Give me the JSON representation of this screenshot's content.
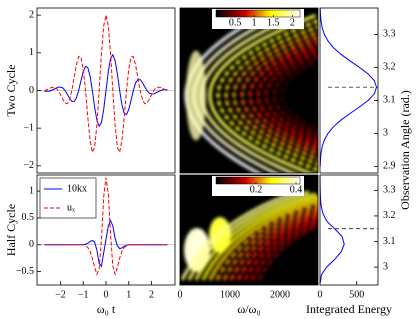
{
  "chart_data": [
    {
      "type": "line",
      "ylabel": "Two Cycle",
      "xlim": [
        -3.03,
        3.03
      ],
      "ylim": [
        -2.19,
        2.19
      ],
      "yticks": [
        {
          "value": -2,
          "label": "−2"
        },
        {
          "value": -1,
          "label": "−1"
        },
        0,
        1,
        2
      ],
      "x": [
        -2.7,
        -2.6,
        -2.5,
        -2.4,
        -2.3,
        -2.2,
        -2.1,
        -2.0,
        -1.9,
        -1.8,
        -1.7,
        -1.6,
        -1.5,
        -1.4,
        -1.3,
        -1.2,
        -1.1,
        -1.0,
        -0.9,
        -0.8,
        -0.7,
        -0.6,
        -0.5,
        -0.4,
        -0.3,
        -0.2,
        -0.1,
        0,
        0.1,
        0.2,
        0.3,
        0.4,
        0.5,
        0.6,
        0.7,
        0.8,
        0.9,
        1.0,
        1.1,
        1.2,
        1.3,
        1.4,
        1.5,
        1.6,
        1.7,
        1.8,
        1.9,
        2.0,
        2.1,
        2.2,
        2.3,
        2.4,
        2.5,
        2.6,
        2.7
      ],
      "series": [
        {
          "color": "#0000ff",
          "linestyle": "solid",
          "values": [
            -0.02,
            -0.02,
            -0.02,
            0,
            0.03,
            0.06,
            0.09,
            0.09,
            0.07,
            0,
            -0.1,
            -0.21,
            -0.29,
            -0.29,
            -0.2,
            0,
            0.26,
            0.5,
            0.64,
            0.61,
            0.38,
            0,
            -0.44,
            -0.79,
            -0.95,
            -0.85,
            -0.5,
            0,
            0.5,
            0.85,
            0.95,
            0.79,
            0.44,
            0,
            -0.38,
            -0.61,
            -0.64,
            -0.5,
            -0.26,
            0,
            0.2,
            0.29,
            0.29,
            0.21,
            0.1,
            0,
            -0.07,
            -0.09,
            -0.09,
            -0.06,
            -0.03,
            0,
            0.02,
            0.02,
            0.02
          ]
        },
        {
          "color": "#ff0000",
          "linestyle": "dashed",
          "values": [
            0,
            0.02,
            0.05,
            0.08,
            0.09,
            0.07,
            0,
            -0.11,
            -0.23,
            -0.33,
            -0.35,
            -0.24,
            0,
            0.34,
            0.68,
            0.9,
            0.89,
            0.57,
            0,
            -0.7,
            -1.32,
            -1.64,
            -1.51,
            -0.92,
            0,
            0.98,
            1.72,
            2,
            1.72,
            0.98,
            0,
            -0.92,
            -1.51,
            -1.64,
            -1.32,
            -0.7,
            0,
            0.57,
            0.89,
            0.9,
            0.68,
            0.34,
            0,
            -0.24,
            -0.35,
            -0.33,
            -0.23,
            -0.11,
            0,
            0.07,
            0.09,
            0.08,
            0.05,
            0.02,
            0
          ]
        }
      ]
    },
    {
      "type": "line",
      "ylabel": "Half Cycle",
      "xlabel": "ω₀ t",
      "xlim": [
        -3.03,
        3.03
      ],
      "ylim": [
        -0.75,
        1.3
      ],
      "yticks": [
        {
          "value": -0.5,
          "label": "−0.5"
        },
        0,
        0.5,
        1
      ],
      "xticks": [
        {
          "value": -2,
          "label": "−2"
        },
        {
          "value": -1,
          "label": "−1"
        },
        0,
        1,
        2
      ],
      "legend": "upper left",
      "x": [
        -2.7,
        -1.0,
        -0.9,
        -0.8,
        -0.7,
        -0.6,
        -0.5,
        -0.4,
        -0.3,
        -0.2,
        -0.1,
        0,
        0.1,
        0.2,
        0.3,
        0.4,
        0.5,
        0.6,
        0.7,
        0.8,
        0.9,
        1.0,
        2.7
      ],
      "series": [
        {
          "name": "10kx",
          "color": "#0000ff",
          "linestyle": "solid",
          "values": [
            0,
            0,
            0.01,
            0.03,
            0.06,
            0.08,
            0.05,
            -0.1,
            -0.35,
            -0.4,
            -0.15,
            0.1,
            0.35,
            0.45,
            0.35,
            0.12,
            -0.02,
            -0.07,
            -0.06,
            -0.03,
            -0.01,
            0,
            0
          ]
        },
        {
          "name": "uₓ",
          "color": "#ff0000",
          "linestyle": "dashed",
          "values": [
            0,
            0,
            -0.02,
            -0.05,
            -0.12,
            -0.25,
            -0.42,
            -0.55,
            -0.45,
            0.1,
            0.9,
            1.25,
            0.95,
            0.2,
            -0.4,
            -0.55,
            -0.42,
            -0.25,
            -0.12,
            -0.05,
            -0.02,
            0,
            0
          ]
        }
      ]
    },
    {
      "type": "heatmap",
      "colorbar_ticks": [
        0.5,
        1,
        1.5,
        2
      ],
      "clim": [
        0,
        2.2
      ]
    },
    {
      "type": "heatmap",
      "xlabel": "ω/ω₀",
      "xlim": [
        0,
        2760
      ],
      "xticks": [
        0,
        1000,
        2000
      ],
      "colorbar_ticks": [
        0.2,
        0.4
      ],
      "clim": [
        0,
        0.42
      ]
    },
    {
      "type": "profile",
      "ylabel": "Observation Angle (rad.)",
      "xlim": [
        0,
        790
      ],
      "ylim": [
        2.88,
        3.38
      ],
      "yticks": [
        2.9,
        3,
        3.1,
        3.2,
        3.3
      ],
      "y": [
        2.9,
        2.92,
        2.94,
        2.96,
        2.98,
        3.0,
        3.02,
        3.04,
        3.06,
        3.08,
        3.1,
        3.12,
        3.14,
        3.16,
        3.18,
        3.2,
        3.22,
        3.24,
        3.26,
        3.28,
        3.3,
        3.32,
        3.34,
        3.36,
        3.38
      ],
      "values": [
        2,
        6,
        14,
        30,
        59,
        109,
        182,
        283,
        406,
        537,
        656,
        740,
        770,
        740,
        656,
        537,
        406,
        283,
        182,
        109,
        59,
        30,
        14,
        6,
        2
      ],
      "color": "#0000ff",
      "reference": 3.14
    },
    {
      "type": "profile",
      "xlabel": "Integrated Energy",
      "xlim": [
        0,
        790
      ],
      "xticks": [
        0,
        500
      ],
      "ylim": [
        2.93,
        3.36
      ],
      "yticks": [
        3,
        3.1,
        3.2,
        3.3
      ],
      "y": [
        2.94,
        2.97,
        3.0,
        3.03,
        3.06,
        3.09,
        3.12,
        3.15,
        3.18,
        3.21,
        3.24,
        3.27,
        3.3,
        3.33,
        3.36
      ],
      "values": [
        5,
        20,
        90,
        200,
        290,
        330,
        300,
        200,
        90,
        40,
        15,
        6,
        3,
        1,
        0
      ],
      "color": "#0000ff",
      "reference": 3.15
    }
  ]
}
